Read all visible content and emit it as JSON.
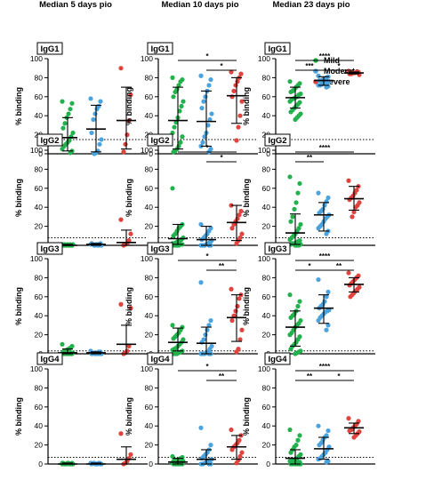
{
  "colors": {
    "Mild": "#22b14c",
    "Moderate": "#4aa3df",
    "Severe": "#e0443e"
  },
  "legend": [
    "Mild",
    "Moderate",
    "Severe"
  ],
  "column_titles": [
    "Median 5 days pio",
    "Median 10 days pio",
    "Median 23 days pio"
  ],
  "y_axis_label": "% binding",
  "y_ticks": [
    0,
    20,
    40,
    60,
    80,
    100
  ],
  "chart_data": [
    {
      "type": "scatter",
      "panel": "IgG1",
      "col": 0,
      "title": "IgG1",
      "ylabel": "% binding",
      "ylim": [
        0,
        100
      ],
      "threshold": 15,
      "groups": [
        {
          "name": "Mild",
          "values": [
            55,
            53,
            47,
            42,
            38,
            32,
            27,
            22,
            18,
            14,
            12,
            10,
            8,
            5,
            3,
            1
          ],
          "median": 17,
          "lower": 3,
          "upper": 38
        },
        {
          "name": "Moderate",
          "values": [
            58,
            55,
            50,
            47,
            42,
            36,
            22,
            15,
            10,
            3,
            1,
            0
          ],
          "median": 26,
          "lower": 2,
          "upper": 51
        },
        {
          "name": "Severe",
          "values": [
            90,
            62,
            35,
            20,
            10,
            2
          ],
          "median": 35,
          "lower": 5,
          "upper": 70
        }
      ],
      "significance": []
    },
    {
      "type": "scatter",
      "panel": "IgG1",
      "col": 1,
      "title": "IgG1",
      "ylabel": "% binding",
      "ylim": [
        0,
        100
      ],
      "threshold": 15,
      "groups": [
        {
          "name": "Mild",
          "values": [
            80,
            78,
            76,
            72,
            68,
            65,
            60,
            55,
            50,
            45,
            38,
            33,
            28,
            22,
            18,
            12,
            8,
            5,
            3,
            2
          ],
          "median": 35,
          "lower": 5,
          "upper": 70
        },
        {
          "name": "Moderate",
          "values": [
            82,
            78,
            72,
            66,
            60,
            55,
            48,
            42,
            36,
            30,
            22,
            18,
            12,
            8,
            5,
            2
          ],
          "median": 34,
          "lower": 8,
          "upper": 66
        },
        {
          "name": "Severe",
          "values": [
            86,
            84,
            80,
            76,
            72,
            66,
            60,
            55,
            40,
            28,
            14
          ],
          "median": 61,
          "lower": 32,
          "upper": 80
        }
      ],
      "significance": [
        {
          "g1": 0,
          "g2": 2,
          "label": "*",
          "level": 1
        },
        {
          "g1": 1,
          "g2": 2,
          "label": "*",
          "level": 0
        }
      ]
    },
    {
      "type": "scatter",
      "panel": "IgG1",
      "col": 2,
      "title": "IgG1",
      "ylabel": "% binding",
      "ylim": [
        0,
        100
      ],
      "threshold": 15,
      "groups": [
        {
          "name": "Mild",
          "values": [
            76,
            74,
            72,
            70,
            68,
            66,
            65,
            63,
            62,
            60,
            59,
            58,
            57,
            55,
            54,
            52,
            50,
            48,
            46,
            44,
            42,
            40,
            38,
            36
          ],
          "median": 59,
          "lower": 48,
          "upper": 70
        },
        {
          "name": "Moderate",
          "values": [
            82,
            81,
            80,
            79,
            78,
            77,
            77,
            76,
            75,
            75,
            74,
            73,
            72,
            72,
            71,
            70
          ],
          "median": 77,
          "lower": 72,
          "upper": 81
        },
        {
          "name": "Severe",
          "values": [
            87,
            86,
            86,
            85,
            85,
            84,
            84,
            83
          ],
          "median": 85,
          "lower": 84,
          "upper": 86
        }
      ],
      "significance": [
        {
          "g1": 0,
          "g2": 2,
          "label": "****",
          "level": 1
        },
        {
          "g1": 0,
          "g2": 1,
          "label": "***",
          "level": 0
        },
        {
          "g1": 1,
          "g2": 2,
          "label": "*",
          "level": 0
        }
      ]
    },
    {
      "type": "scatter",
      "panel": "IgG2",
      "col": 0,
      "title": "IgG2",
      "ylabel": "% binding",
      "ylim": [
        0,
        100
      ],
      "threshold": 8,
      "groups": [
        {
          "name": "Mild",
          "values": [
            1,
            0,
            1,
            0,
            0,
            1,
            0,
            1,
            0,
            0,
            1,
            0,
            0,
            1,
            0,
            0
          ],
          "median": 0,
          "lower": 0,
          "upper": 1
        },
        {
          "name": "Moderate",
          "values": [
            1,
            2,
            0,
            1,
            0,
            1,
            2,
            0,
            1,
            0,
            1,
            0
          ],
          "median": 1,
          "lower": 0,
          "upper": 2
        },
        {
          "name": "Severe",
          "values": [
            27,
            12,
            5,
            2,
            1,
            0
          ],
          "median": 3,
          "lower": 0,
          "upper": 16
        }
      ],
      "significance": []
    },
    {
      "type": "scatter",
      "panel": "IgG2",
      "col": 1,
      "title": "IgG2",
      "ylabel": "% binding",
      "ylim": [
        0,
        100
      ],
      "threshold": 8,
      "groups": [
        {
          "name": "Mild",
          "values": [
            60,
            22,
            20,
            18,
            15,
            12,
            10,
            8,
            6,
            5,
            4,
            3,
            2,
            2,
            1,
            1,
            0,
            0,
            0,
            0
          ],
          "median": 7,
          "lower": 1,
          "upper": 22
        },
        {
          "name": "Moderate",
          "values": [
            22,
            18,
            15,
            12,
            10,
            8,
            6,
            5,
            3,
            2,
            1,
            0,
            0,
            0,
            0,
            0
          ],
          "median": 6,
          "lower": 0,
          "upper": 20
        },
        {
          "name": "Severe",
          "values": [
            42,
            36,
            32,
            28,
            25,
            22,
            18,
            12,
            8,
            5,
            2
          ],
          "median": 24,
          "lower": 5,
          "upper": 42
        }
      ],
      "significance": [
        {
          "g1": 0,
          "g2": 2,
          "label": "*",
          "level": 1
        },
        {
          "g1": 1,
          "g2": 2,
          "label": "*",
          "level": 0
        }
      ]
    },
    {
      "type": "scatter",
      "panel": "IgG2",
      "col": 2,
      "title": "IgG2",
      "ylabel": "% binding",
      "ylim": [
        0,
        100
      ],
      "threshold": 8,
      "groups": [
        {
          "name": "Mild",
          "values": [
            72,
            65,
            55,
            45,
            38,
            30,
            25,
            22,
            18,
            15,
            12,
            10,
            8,
            6,
            5,
            4,
            3,
            2,
            2,
            1,
            1,
            0,
            0,
            0
          ],
          "median": 13,
          "lower": 1,
          "upper": 33
        },
        {
          "name": "Moderate",
          "values": [
            55,
            50,
            46,
            42,
            38,
            36,
            34,
            32,
            30,
            28,
            25,
            22,
            20,
            18,
            15,
            12
          ],
          "median": 32,
          "lower": 15,
          "upper": 45
        },
        {
          "name": "Severe",
          "values": [
            68,
            62,
            58,
            55,
            52,
            50,
            48,
            45,
            42,
            40,
            35,
            30
          ],
          "median": 49,
          "lower": 37,
          "upper": 62
        }
      ],
      "significance": [
        {
          "g1": 0,
          "g2": 2,
          "label": "****",
          "level": 1
        },
        {
          "g1": 0,
          "g2": 1,
          "label": "**",
          "level": 0
        }
      ]
    },
    {
      "type": "scatter",
      "panel": "IgG3",
      "col": 0,
      "title": "IgG3",
      "ylabel": "% binding",
      "ylim": [
        0,
        100
      ],
      "threshold": 3,
      "groups": [
        {
          "name": "Mild",
          "values": [
            10,
            8,
            6,
            5,
            4,
            3,
            2,
            1,
            1,
            0,
            0,
            0,
            0,
            0,
            0,
            0
          ],
          "median": 1,
          "lower": 0,
          "upper": 5
        },
        {
          "name": "Moderate",
          "values": [
            3,
            2,
            2,
            1,
            1,
            1,
            0,
            0,
            0,
            0,
            0,
            0
          ],
          "median": 1,
          "lower": 0,
          "upper": 2
        },
        {
          "name": "Severe",
          "values": [
            52,
            48,
            8,
            3,
            1,
            0
          ],
          "median": 10,
          "lower": 0,
          "upper": 30
        }
      ],
      "significance": []
    },
    {
      "type": "scatter",
      "panel": "IgG3",
      "col": 1,
      "title": "IgG3",
      "ylabel": "% binding",
      "ylim": [
        0,
        100
      ],
      "threshold": 3,
      "groups": [
        {
          "name": "Mild",
          "values": [
            30,
            28,
            25,
            22,
            20,
            18,
            16,
            15,
            12,
            10,
            8,
            6,
            5,
            4,
            3,
            2,
            1,
            0,
            0,
            0
          ],
          "median": 12,
          "lower": 3,
          "upper": 27
        },
        {
          "name": "Moderate",
          "values": [
            75,
            35,
            30,
            25,
            20,
            15,
            12,
            8,
            5,
            2,
            1,
            0,
            0,
            0,
            0,
            0
          ],
          "median": 11,
          "lower": 0,
          "upper": 28
        },
        {
          "name": "Severe",
          "values": [
            68,
            62,
            58,
            50,
            45,
            40,
            35,
            25,
            15,
            5,
            2
          ],
          "median": 38,
          "lower": 13,
          "upper": 62
        }
      ],
      "significance": [
        {
          "g1": 0,
          "g2": 2,
          "label": "*",
          "level": 1
        },
        {
          "g1": 1,
          "g2": 2,
          "label": "**",
          "level": 0
        }
      ]
    },
    {
      "type": "scatter",
      "panel": "IgG3",
      "col": 2,
      "title": "IgG3",
      "ylabel": "% binding",
      "ylim": [
        0,
        100
      ],
      "threshold": 3,
      "groups": [
        {
          "name": "Mild",
          "values": [
            62,
            55,
            50,
            45,
            42,
            40,
            38,
            35,
            32,
            30,
            28,
            25,
            22,
            20,
            18,
            15,
            12,
            10,
            8,
            5,
            3,
            2,
            1,
            0
          ],
          "median": 28,
          "lower": 8,
          "upper": 45
        },
        {
          "name": "Moderate",
          "values": [
            78,
            65,
            60,
            55,
            52,
            50,
            48,
            46,
            45,
            44,
            42,
            40,
            38,
            35,
            30,
            25
          ],
          "median": 48,
          "lower": 32,
          "upper": 62
        },
        {
          "name": "Severe",
          "values": [
            85,
            82,
            80,
            78,
            76,
            74,
            72,
            70,
            68,
            66,
            64,
            62,
            60
          ],
          "median": 73,
          "lower": 65,
          "upper": 80
        }
      ],
      "significance": [
        {
          "g1": 0,
          "g2": 2,
          "label": "****",
          "level": 1
        },
        {
          "g1": 0,
          "g2": 1,
          "label": "*",
          "level": 0
        },
        {
          "g1": 1,
          "g2": 2,
          "label": "**",
          "level": 0
        }
      ]
    },
    {
      "type": "scatter",
      "panel": "IgG4",
      "col": 0,
      "title": "IgG4",
      "ylabel": "% binding",
      "ylim": [
        0,
        100
      ],
      "threshold": 7,
      "groups": [
        {
          "name": "Mild",
          "values": [
            1,
            0,
            0,
            1,
            0,
            0,
            1,
            0,
            0,
            0,
            1,
            0,
            0,
            0,
            1,
            0
          ],
          "median": 0,
          "lower": 0,
          "upper": 1
        },
        {
          "name": "Moderate",
          "values": [
            1,
            0,
            1,
            0,
            0,
            1,
            0,
            0,
            1,
            0,
            0,
            1
          ],
          "median": 0,
          "lower": 0,
          "upper": 1
        },
        {
          "name": "Severe",
          "values": [
            32,
            10,
            6,
            3,
            1,
            0
          ],
          "median": 5,
          "lower": 0,
          "upper": 18
        }
      ],
      "significance": []
    },
    {
      "type": "scatter",
      "panel": "IgG4",
      "col": 1,
      "title": "IgG4",
      "ylabel": "% binding",
      "ylim": [
        0,
        100
      ],
      "threshold": 7,
      "groups": [
        {
          "name": "Mild",
          "values": [
            8,
            7,
            6,
            5,
            4,
            4,
            3,
            3,
            2,
            2,
            2,
            1,
            1,
            1,
            0,
            0,
            0,
            0,
            0,
            0
          ],
          "median": 2,
          "lower": 0,
          "upper": 6
        },
        {
          "name": "Moderate",
          "values": [
            38,
            20,
            15,
            12,
            10,
            8,
            6,
            5,
            4,
            3,
            2,
            1,
            0,
            0,
            0,
            0
          ],
          "median": 5,
          "lower": 0,
          "upper": 15
        },
        {
          "name": "Severe",
          "values": [
            36,
            30,
            25,
            22,
            20,
            18,
            15,
            12,
            8,
            4,
            1
          ],
          "median": 18,
          "lower": 5,
          "upper": 30
        }
      ],
      "significance": [
        {
          "g1": 0,
          "g2": 2,
          "label": "*",
          "level": 1
        },
        {
          "g1": 1,
          "g2": 2,
          "label": "**",
          "level": 0
        }
      ]
    },
    {
      "type": "scatter",
      "panel": "IgG4",
      "col": 2,
      "title": "IgG4",
      "ylabel": "% binding",
      "ylim": [
        0,
        100
      ],
      "threshold": 7,
      "groups": [
        {
          "name": "Mild",
          "values": [
            36,
            30,
            25,
            20,
            18,
            15,
            12,
            10,
            8,
            6,
            5,
            4,
            3,
            3,
            2,
            2,
            1,
            1,
            0,
            0,
            0,
            0,
            0,
            0
          ],
          "median": 6,
          "lower": 0,
          "upper": 15
        },
        {
          "name": "Moderate",
          "values": [
            40,
            35,
            30,
            28,
            25,
            22,
            20,
            18,
            15,
            12,
            10,
            8,
            6,
            5,
            3,
            2
          ],
          "median": 16,
          "lower": 5,
          "upper": 28
        },
        {
          "name": "Severe",
          "values": [
            48,
            45,
            42,
            40,
            38,
            36,
            35,
            34,
            32,
            30,
            28
          ],
          "median": 38,
          "lower": 32,
          "upper": 43
        }
      ],
      "significance": [
        {
          "g1": 0,
          "g2": 2,
          "label": "****",
          "level": 1
        },
        {
          "g1": 0,
          "g2": 1,
          "label": "**",
          "level": 0
        },
        {
          "g1": 1,
          "g2": 2,
          "label": "*",
          "level": 0
        }
      ]
    }
  ]
}
